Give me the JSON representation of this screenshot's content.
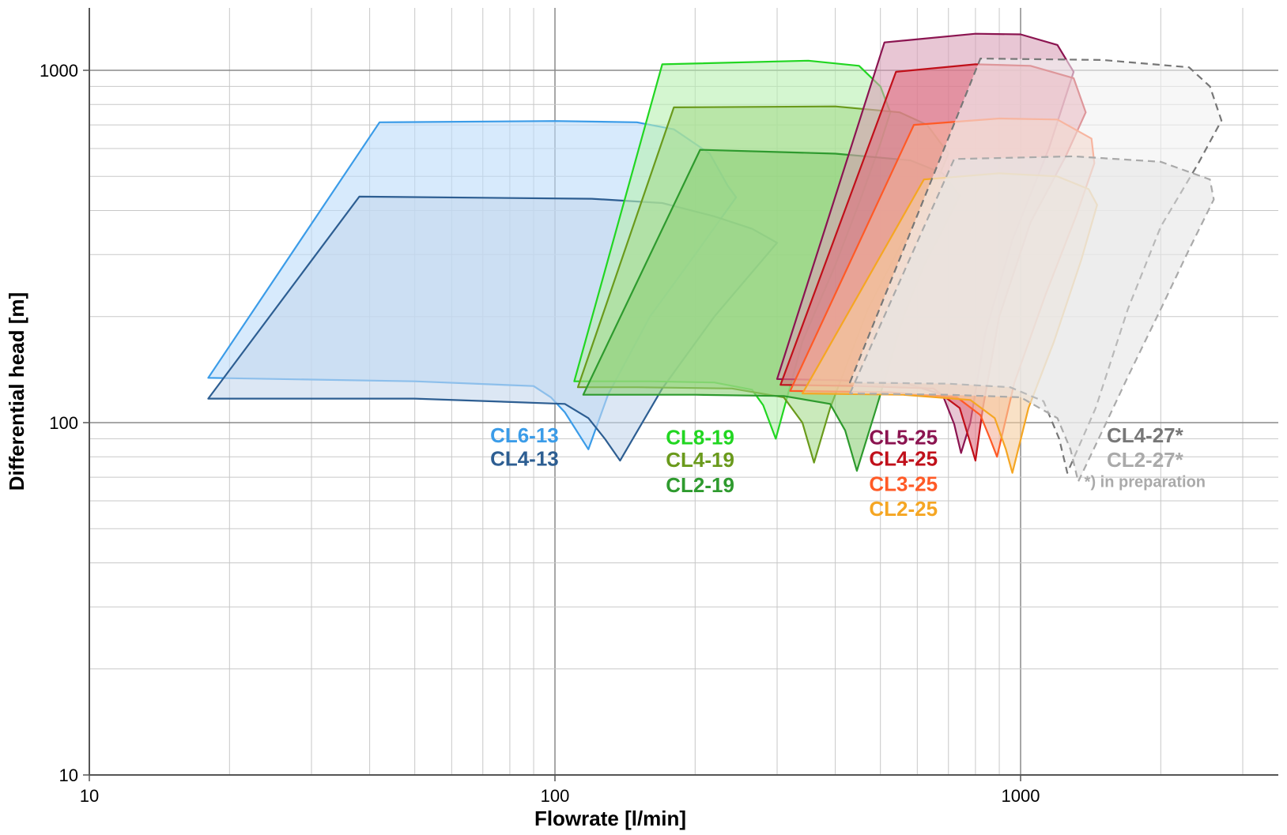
{
  "chart_data": {
    "type": "area",
    "xlabel": "Flowrate [l/min]",
    "ylabel": "Differential head [m]",
    "x_scale": "log",
    "y_scale": "log",
    "xlim": [
      10,
      4000
    ],
    "ylim": [
      10,
      1500
    ],
    "x_ticks": [
      10,
      100,
      1000
    ],
    "x_tick_labels": [
      "10",
      "100",
      "1000"
    ],
    "y_ticks": [
      10,
      100,
      1000
    ],
    "y_tick_labels": [
      "10",
      "100",
      "1000"
    ],
    "grid": true,
    "note": "*) in preparation",
    "series": [
      {
        "name": "CL6-13",
        "color": "#3b9ce8",
        "fill": "#bcdcfa",
        "dashed": false,
        "group": "CL-13",
        "label_y": 92,
        "boundary": [
          [
            18,
            134
          ],
          [
            42,
            712
          ],
          [
            100,
            718
          ],
          [
            150,
            712
          ],
          [
            180,
            680
          ],
          [
            215,
            580
          ],
          [
            235,
            470
          ],
          [
            245,
            436
          ],
          [
            200,
            300
          ],
          [
            160,
            200
          ],
          [
            130,
            120
          ],
          [
            118,
            84
          ],
          [
            105,
            107
          ],
          [
            98,
            118
          ],
          [
            90,
            127
          ],
          [
            50,
            131
          ],
          [
            18,
            134
          ]
        ]
      },
      {
        "name": "CL4-13",
        "color": "#2d5e92",
        "fill": "#c4d7ec",
        "dashed": false,
        "group": "CL-13",
        "label_y": 79,
        "boundary": [
          [
            18,
            117
          ],
          [
            38,
            438
          ],
          [
            120,
            432
          ],
          [
            170,
            420
          ],
          [
            220,
            385
          ],
          [
            265,
            355
          ],
          [
            300,
            324
          ],
          [
            220,
            200
          ],
          [
            170,
            125
          ],
          [
            138,
            78
          ],
          [
            128,
            90
          ],
          [
            118,
            103
          ],
          [
            105,
            113
          ],
          [
            50,
            117
          ],
          [
            18,
            117
          ]
        ]
      },
      {
        "name": "CL8-19",
        "color": "#22d622",
        "fill": "#b8f0b0",
        "dashed": false,
        "group": "CL-19",
        "label_y": 91,
        "boundary": [
          [
            110,
            131
          ],
          [
            170,
            1040
          ],
          [
            350,
            1065
          ],
          [
            450,
            1030
          ],
          [
            500,
            900
          ],
          [
            525,
            760
          ],
          [
            500,
            620
          ],
          [
            450,
            420
          ],
          [
            400,
            280
          ],
          [
            340,
            170
          ],
          [
            298,
            90
          ],
          [
            280,
            112
          ],
          [
            265,
            124
          ],
          [
            220,
            130
          ],
          [
            160,
            131
          ],
          [
            110,
            131
          ]
        ]
      },
      {
        "name": "CL4-19",
        "color": "#6a9a1c",
        "fill": "#a6dc8e",
        "dashed": false,
        "group": "CL-19",
        "label_y": 78.5,
        "boundary": [
          [
            112,
            126
          ],
          [
            180,
            785
          ],
          [
            400,
            790
          ],
          [
            550,
            760
          ],
          [
            630,
            700
          ],
          [
            700,
            580
          ],
          [
            650,
            460
          ],
          [
            560,
            330
          ],
          [
            470,
            210
          ],
          [
            390,
            110
          ],
          [
            360,
            77
          ],
          [
            340,
            100
          ],
          [
            310,
            118
          ],
          [
            240,
            125
          ],
          [
            150,
            126
          ],
          [
            112,
            126
          ]
        ]
      },
      {
        "name": "CL2-19",
        "color": "#2e9a2e",
        "fill": "#8fd07a",
        "dashed": false,
        "group": "CL-19",
        "label_y": 66.5,
        "boundary": [
          [
            115,
            120
          ],
          [
            205,
            595
          ],
          [
            400,
            580
          ],
          [
            580,
            555
          ],
          [
            680,
            510
          ],
          [
            740,
            440
          ],
          [
            700,
            380
          ],
          [
            620,
            280
          ],
          [
            560,
            200
          ],
          [
            490,
            110
          ],
          [
            445,
            73
          ],
          [
            420,
            95
          ],
          [
            390,
            113
          ],
          [
            310,
            119
          ],
          [
            200,
            120
          ],
          [
            115,
            120
          ]
        ]
      },
      {
        "name": "CL5-25",
        "color": "#8b1450",
        "fill": "#d9a0b8",
        "dashed": false,
        "group": "CL-25",
        "label_y": 91,
        "boundary": [
          [
            300,
            133
          ],
          [
            510,
            1200
          ],
          [
            800,
            1270
          ],
          [
            1000,
            1265
          ],
          [
            1200,
            1180
          ],
          [
            1300,
            990
          ],
          [
            1150,
            600
          ],
          [
            960,
            330
          ],
          [
            840,
            180
          ],
          [
            780,
            100
          ],
          [
            745,
            82
          ],
          [
            720,
            99
          ],
          [
            680,
            120
          ],
          [
            560,
            130
          ],
          [
            400,
            132
          ],
          [
            300,
            133
          ]
        ]
      },
      {
        "name": "CL4-25",
        "color": "#c0101a",
        "fill": "#e07080",
        "dashed": false,
        "group": "CL-25",
        "label_y": 79,
        "boundary": [
          [
            305,
            128
          ],
          [
            540,
            990
          ],
          [
            800,
            1040
          ],
          [
            1050,
            1030
          ],
          [
            1300,
            950
          ],
          [
            1380,
            760
          ],
          [
            1250,
            570
          ],
          [
            1050,
            370
          ],
          [
            900,
            200
          ],
          [
            830,
            110
          ],
          [
            800,
            78
          ],
          [
            775,
            90
          ],
          [
            740,
            110
          ],
          [
            650,
            125
          ],
          [
            450,
            127
          ],
          [
            305,
            128
          ]
        ]
      },
      {
        "name": "CL3-25",
        "color": "#ff5a26",
        "fill": "#f5b39b",
        "dashed": false,
        "group": "CL-25",
        "label_y": 67,
        "boundary": [
          [
            320,
            123
          ],
          [
            590,
            700
          ],
          [
            900,
            730
          ],
          [
            1200,
            725
          ],
          [
            1420,
            640
          ],
          [
            1440,
            545
          ],
          [
            1320,
            390
          ],
          [
            1130,
            230
          ],
          [
            970,
            130
          ],
          [
            890,
            80
          ],
          [
            860,
            90
          ],
          [
            820,
            105
          ],
          [
            730,
            118
          ],
          [
            520,
            122
          ],
          [
            320,
            123
          ]
        ]
      },
      {
        "name": "CL2-25",
        "color": "#f5a623",
        "fill": "#f5cda0",
        "dashed": false,
        "group": "CL-25",
        "label_y": 57,
        "boundary": [
          [
            340,
            121
          ],
          [
            620,
            490
          ],
          [
            900,
            510
          ],
          [
            1200,
            500
          ],
          [
            1400,
            460
          ],
          [
            1460,
            415
          ],
          [
            1350,
            290
          ],
          [
            1180,
            170
          ],
          [
            1040,
            110
          ],
          [
            960,
            72
          ],
          [
            930,
            84
          ],
          [
            880,
            103
          ],
          [
            780,
            116
          ],
          [
            560,
            120
          ],
          [
            340,
            121
          ]
        ]
      },
      {
        "name": "CL4-27*",
        "color": "#777777",
        "fill": "#f2f2f2",
        "dashed": true,
        "group": "CL-27",
        "label_y": 92,
        "boundary": [
          [
            430,
            130
          ],
          [
            820,
            1080
          ],
          [
            1500,
            1070
          ],
          [
            2300,
            1020
          ],
          [
            2550,
            900
          ],
          [
            2700,
            720
          ],
          [
            2400,
            540
          ],
          [
            2000,
            360
          ],
          [
            1700,
            210
          ],
          [
            1450,
            110
          ],
          [
            1260,
            72
          ],
          [
            1210,
            90
          ],
          [
            1120,
            115
          ],
          [
            950,
            126
          ],
          [
            700,
            129
          ],
          [
            430,
            130
          ]
        ]
      },
      {
        "name": "CL2-27*",
        "color": "#aaaaaa",
        "fill": "#e6e6e6",
        "dashed": true,
        "group": "CL-27",
        "label_y": 78.5,
        "boundary": [
          [
            430,
            121
          ],
          [
            720,
            560
          ],
          [
            1300,
            570
          ],
          [
            2000,
            550
          ],
          [
            2550,
            490
          ],
          [
            2600,
            430
          ],
          [
            2300,
            310
          ],
          [
            2000,
            210
          ],
          [
            1700,
            135
          ],
          [
            1500,
            95
          ],
          [
            1330,
            68
          ],
          [
            1280,
            84
          ],
          [
            1200,
            103
          ],
          [
            1000,
            118
          ],
          [
            700,
            120
          ],
          [
            430,
            121
          ]
        ]
      }
    ]
  }
}
